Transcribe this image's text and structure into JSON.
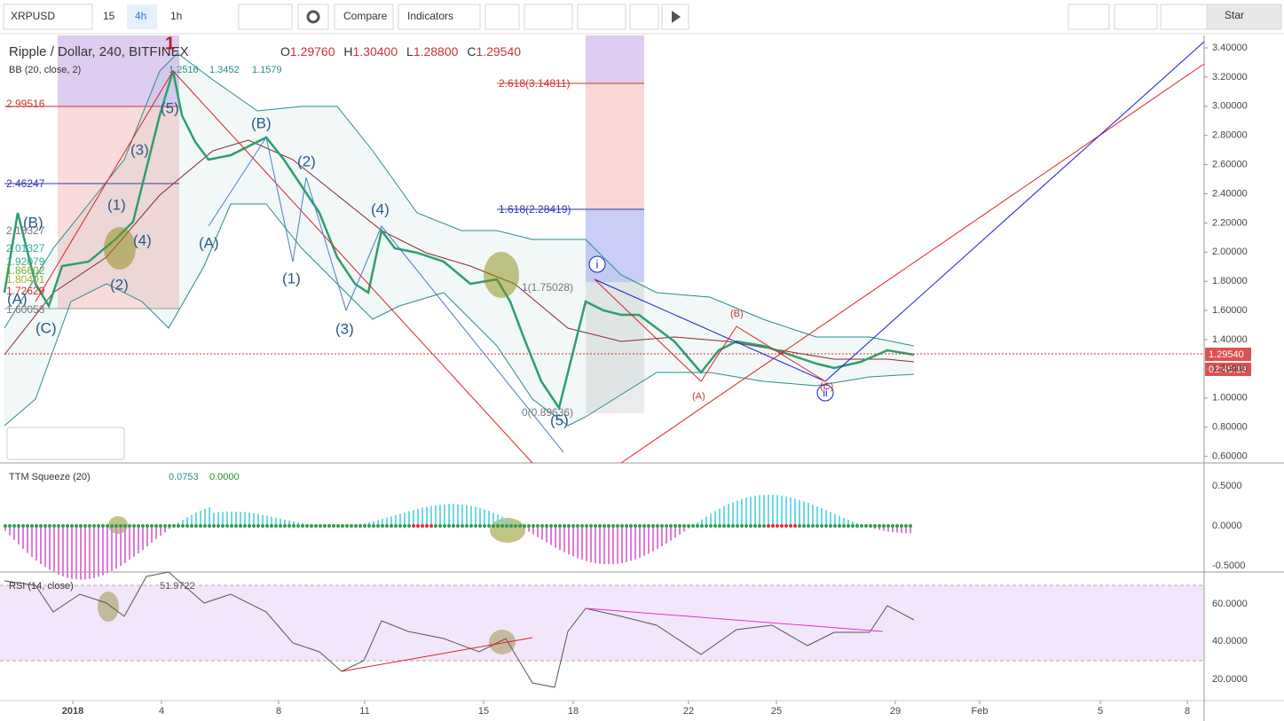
{
  "toolbar": {
    "symbol": "XRPUSD",
    "intervals": [
      "15",
      "4h",
      "1h"
    ],
    "compare": "Compare",
    "indicators": "Indicators",
    "star": "Star"
  },
  "legend": {
    "title": "Ripple / Dollar, 240, BITFINEX",
    "ohlc": [
      {
        "label": "O",
        "value": "1.29760"
      },
      {
        "label": "H",
        "value": "1.30400"
      },
      {
        "label": "L",
        "value": "1.28800"
      },
      {
        "label": "C",
        "value": "1.29540"
      }
    ],
    "bb": {
      "name": "BB (20, close, 2)",
      "values": [
        "1.2516",
        "1.3452",
        "1.1579"
      ]
    }
  },
  "price_axis": [
    "3.40000",
    "3.20000",
    "3.00000",
    "2.80000",
    "2.60000",
    "2.40000",
    "2.20000",
    "2.00000",
    "1.80000",
    "1.60000",
    "1.40000",
    "1.20000",
    "1.00000",
    "0.80000",
    "0.60000"
  ],
  "current_price": "1.29540",
  "countdown": "02:45:19",
  "fib_left": [
    "2.99516",
    "2.46247",
    "2.13327",
    "2.01327",
    "1.92079",
    "1.86602",
    "1.80401",
    "1.72629",
    "1.60053"
  ],
  "fib_right": [
    "2.618(3.14811)",
    "1.618(2.28419)",
    "1(1.75028)",
    "0(0.89636)"
  ],
  "waves": [
    "1",
    "(1)",
    "(2)",
    "(3)",
    "(4)",
    "(5)",
    "(A)",
    "(B)",
    "(C)",
    "(A)",
    "(B)",
    "(1)",
    "(2)",
    "(3)",
    "(4)",
    "(5)",
    "i",
    "ii",
    "(A)",
    "(B)",
    "(C)"
  ],
  "ttm": {
    "name": "TTM Squeeze (20)",
    "values": [
      "0.0753",
      "0.0000"
    ],
    "axis": [
      "0.5000",
      "0.0000",
      "-0.5000"
    ]
  },
  "rsi": {
    "name": "RSI (14, close)",
    "value": "51.9722",
    "axis": [
      "60.0000",
      "40.0000",
      "20.0000"
    ]
  },
  "dates": [
    "2018",
    "4",
    "8",
    "11",
    "15",
    "18",
    "22",
    "25",
    "29",
    "Feb",
    "5",
    "8"
  ]
}
